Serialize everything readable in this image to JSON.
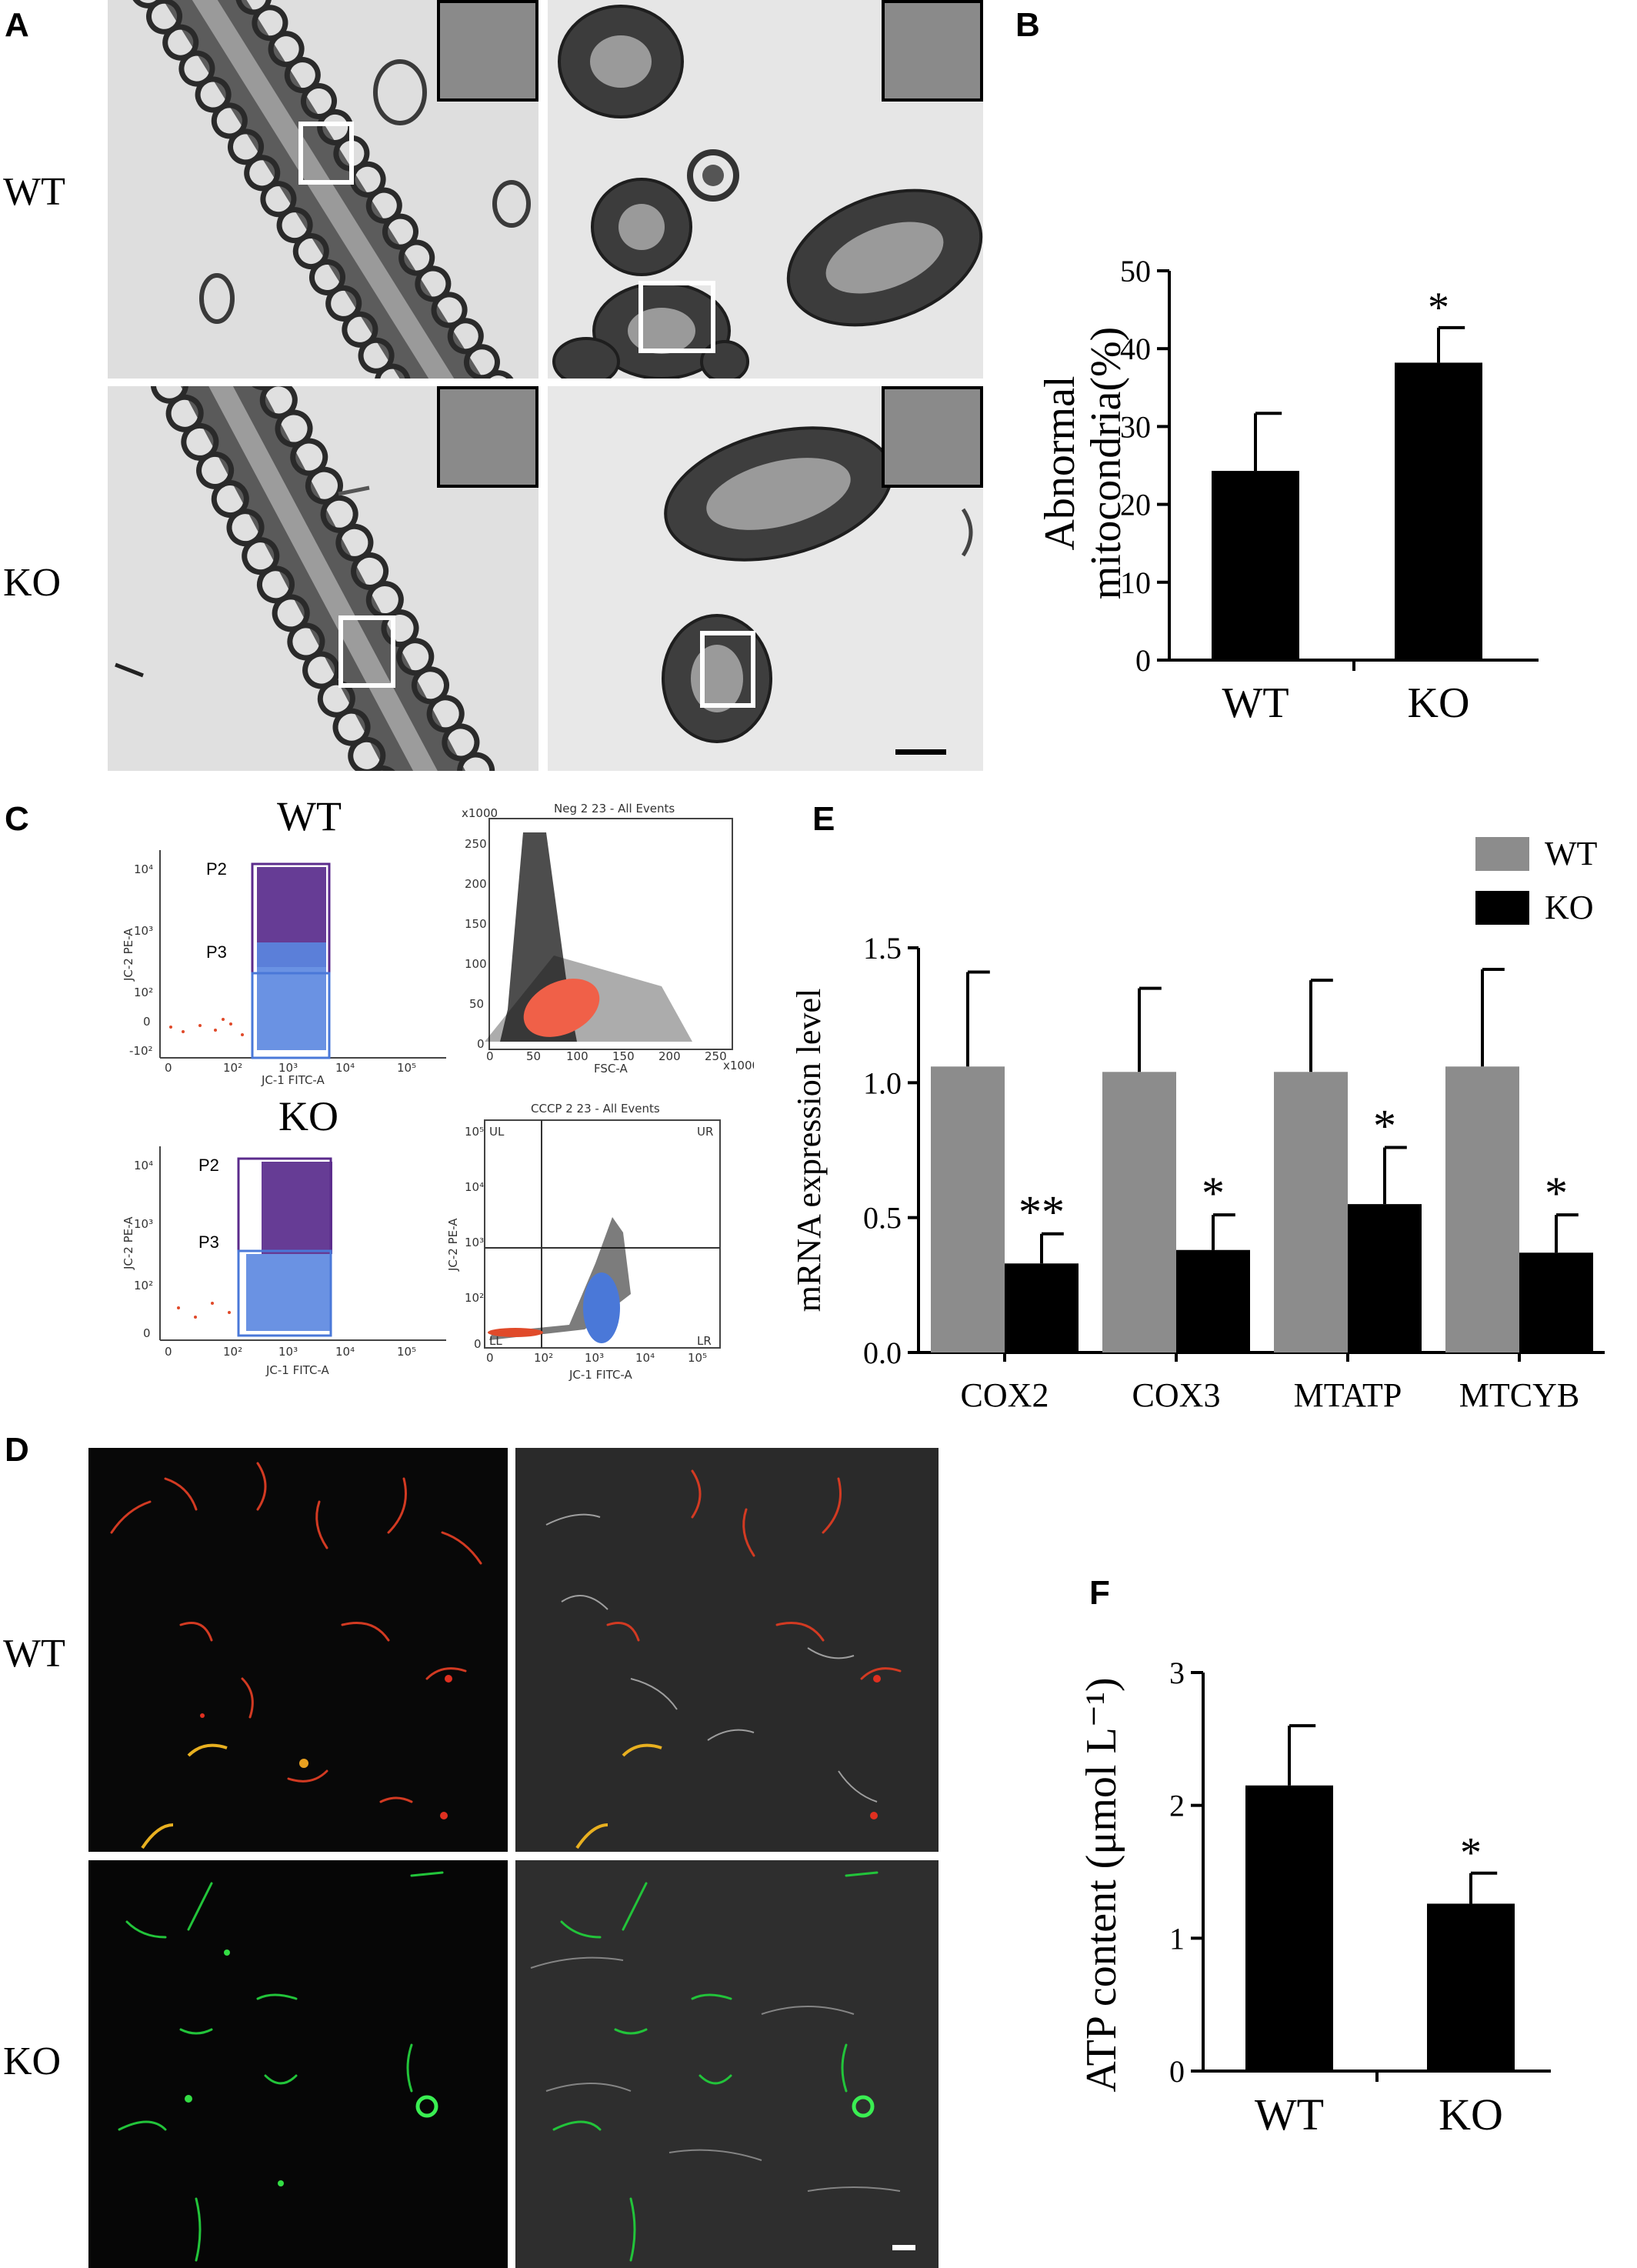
{
  "panels": {
    "A": {
      "letter": "A",
      "row_labels": [
        "WT",
        "KO"
      ]
    },
    "B": {
      "letter": "B"
    },
    "C": {
      "letter": "C",
      "plot_titles": {
        "wt": "WT",
        "ko": "KO",
        "neg": "Neg 2 23 - All Events",
        "cccp": "CCCP 2 23 - All Events"
      },
      "gates": {
        "p2": "P2",
        "p3": "P3",
        "ul": "UL",
        "ur": "UR",
        "ll": "LL",
        "lr": "LR"
      },
      "axes": {
        "jc2": "JC-2 PE-A",
        "jc1": "JC-1 FITC-A",
        "fsc": "FSC-A",
        "x1000": "x1000"
      },
      "log_ticks": [
        "0",
        "10²",
        "10³",
        "10⁴",
        "10⁵"
      ],
      "log_ticks_y": [
        "-10²",
        "0",
        "10²",
        "10³",
        "10⁴"
      ],
      "lin_ticks": [
        "0",
        "50",
        "100",
        "150",
        "200",
        "250"
      ]
    },
    "D": {
      "letter": "D",
      "row_labels": [
        "WT",
        "KO"
      ]
    },
    "E": {
      "letter": "E"
    },
    "F": {
      "letter": "F"
    }
  },
  "colors": {
    "wt_bar_B": "#000000",
    "wt_bar_E": "#8c8c8c",
    "ko_bar": "#000000",
    "gate_p2": "#5b2b8c",
    "gate_p3": "#4a78d8",
    "dots_p2": "#4b1a82",
    "dots_p3": "#5a86e0",
    "dots_red": "#e04a2a",
    "fsc_blob": "#f06048"
  },
  "chart_data": [
    {
      "panel": "B",
      "type": "bar",
      "categories": [
        "WT",
        "KO"
      ],
      "values": [
        24.3,
        38.2
      ],
      "errors": [
        7.4,
        4.5
      ],
      "significance": [
        "",
        "*"
      ],
      "ylabel": "Abnormal mitocondria(%)",
      "ylabel_lines": [
        "Abnormal",
        "mitocondria(%)"
      ],
      "ylim": [
        0,
        50
      ],
      "yticks": [
        "0",
        "10",
        "20",
        "30",
        "40",
        "50"
      ]
    },
    {
      "panel": "E",
      "type": "bar",
      "categories": [
        "COX2",
        "COX3",
        "MTATP",
        "MTCYB"
      ],
      "series": [
        {
          "name": "WT",
          "values": [
            1.06,
            1.04,
            1.04,
            1.06
          ],
          "errors": [
            0.35,
            0.31,
            0.34,
            0.36
          ]
        },
        {
          "name": "KO",
          "values": [
            0.33,
            0.38,
            0.55,
            0.37
          ],
          "errors": [
            0.11,
            0.13,
            0.21,
            0.14
          ]
        }
      ],
      "significance": [
        "**",
        "*",
        "*",
        "*"
      ],
      "ylabel": "mRNA expression level",
      "ylim": [
        0,
        1.5
      ],
      "yticks": [
        "0.0",
        "0.5",
        "1.0",
        "1.5"
      ],
      "legend": "top-right"
    },
    {
      "panel": "F",
      "type": "bar",
      "categories": [
        "WT",
        "KO"
      ],
      "values": [
        2.15,
        1.26
      ],
      "errors": [
        0.45,
        0.23
      ],
      "significance": [
        "",
        "*"
      ],
      "ylabel": "ATP content (μmol L⁻¹)",
      "ylim": [
        0,
        3
      ],
      "yticks": [
        "0",
        "1",
        "2",
        "3"
      ]
    }
  ]
}
